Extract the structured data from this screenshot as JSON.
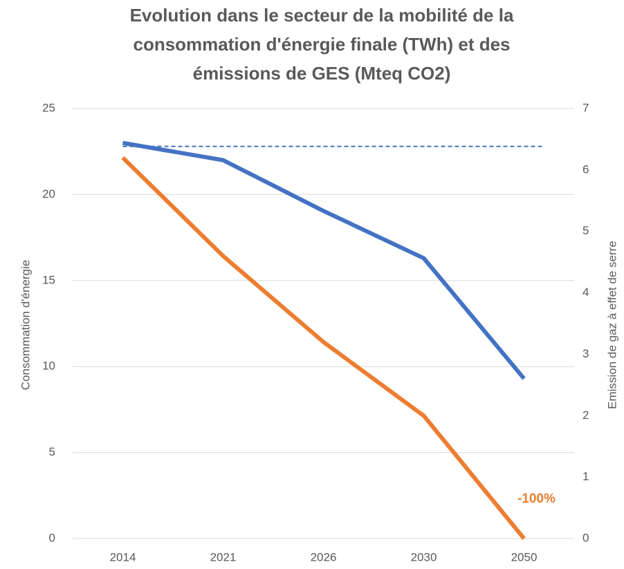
{
  "chart_data": {
    "type": "line",
    "title": [
      "Evolution dans le secteur de la mobilité de la",
      "consommation d'énergie finale (TWh) et des",
      "émissions de GES (Mteq CO2)"
    ],
    "y_label": "Consommation d'énergie",
    "y2_label": "Emission de gaz à effet de serre",
    "categories": [
      "2014",
      "2021",
      "2026",
      "2030",
      "2050"
    ],
    "series": [
      {
        "color": "#4472c4",
        "values": [
          23,
          22,
          19.05,
          16.3,
          9.3
        ]
      },
      {
        "color": "#ed7d31",
        "values": [
          6.2,
          4.6,
          3.2,
          2.0,
          0
        ],
        "axis": "y2"
      }
    ],
    "reference_line": {
      "value": 22.8,
      "color": "#4472c4",
      "style": "dashed"
    },
    "annotations": [
      {
        "text": "-100%",
        "color": "#ed7d31"
      }
    ],
    "ylim": [
      0,
      25
    ],
    "yticks": [
      0,
      5,
      10,
      15,
      20,
      25
    ],
    "y2lim": [
      0,
      7
    ],
    "y2ticks": [
      0,
      1,
      2,
      3,
      4,
      5,
      6,
      7
    ],
    "grid": true
  }
}
